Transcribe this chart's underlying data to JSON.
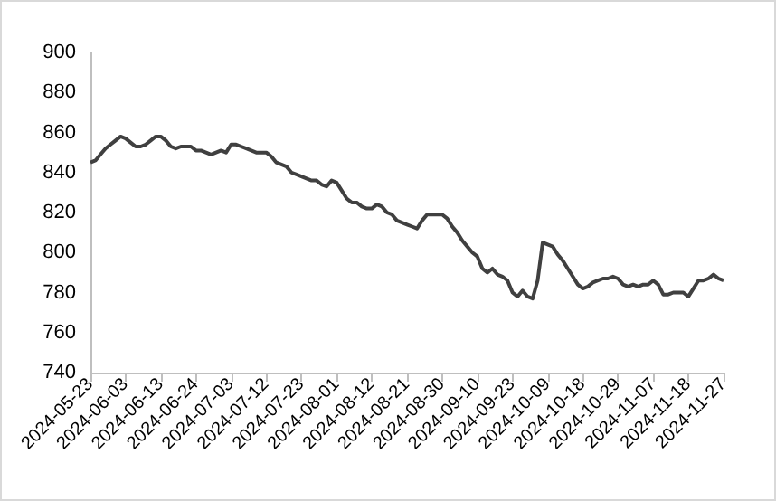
{
  "chart_data": {
    "type": "line",
    "categories": [
      "2024-05-23",
      null,
      null,
      null,
      null,
      null,
      null,
      "2024-06-03",
      null,
      null,
      null,
      null,
      null,
      null,
      "2024-06-13",
      null,
      null,
      null,
      null,
      null,
      null,
      "2024-06-24",
      null,
      null,
      null,
      null,
      null,
      null,
      "2024-07-03",
      null,
      null,
      null,
      null,
      null,
      null,
      "2024-07-12",
      null,
      null,
      null,
      null,
      null,
      null,
      "2024-07-23",
      null,
      null,
      null,
      null,
      null,
      null,
      "2024-08-01",
      null,
      null,
      null,
      null,
      null,
      null,
      "2024-08-12",
      null,
      null,
      null,
      null,
      null,
      null,
      "2024-08-21",
      null,
      null,
      null,
      null,
      null,
      null,
      "2024-08-30",
      null,
      null,
      null,
      null,
      null,
      null,
      "2024-09-10",
      null,
      null,
      null,
      null,
      null,
      null,
      "2024-09-23",
      null,
      null,
      null,
      null,
      null,
      null,
      "2024-10-09",
      null,
      null,
      null,
      null,
      null,
      null,
      "2024-10-18",
      null,
      null,
      null,
      null,
      null,
      null,
      "2024-10-29",
      null,
      null,
      null,
      null,
      null,
      null,
      "2024-11-07",
      null,
      null,
      null,
      null,
      null,
      null,
      "2024-11-18",
      null,
      null,
      null,
      null,
      null,
      null,
      "2024-11-27"
    ],
    "series": [
      {
        "color": "#404040",
        "values": [
          845,
          846,
          849,
          852,
          854,
          856,
          858,
          857,
          855,
          853,
          853,
          854,
          856,
          858,
          858,
          856,
          853,
          852,
          853,
          853,
          853,
          851,
          851,
          850,
          849,
          850,
          851,
          850,
          854,
          854,
          853,
          852,
          851,
          850,
          850,
          850,
          848,
          845,
          844,
          843,
          840,
          839,
          838,
          837,
          836,
          836,
          834,
          833,
          836,
          835,
          831,
          827,
          825,
          825,
          823,
          822,
          822,
          824,
          823,
          820,
          819,
          816,
          815,
          814,
          813,
          812,
          816,
          819,
          819,
          819,
          819,
          817,
          813,
          810,
          806,
          803,
          800,
          798,
          792,
          790,
          792,
          789,
          788,
          786,
          780,
          778,
          781,
          778,
          777,
          786,
          805,
          804,
          803,
          799,
          796,
          792,
          788,
          784,
          782,
          783,
          785,
          786,
          787,
          787,
          788,
          787,
          784,
          783,
          784,
          783,
          784,
          784,
          786,
          784,
          779,
          779,
          780,
          780,
          780,
          778,
          782,
          786,
          786,
          787,
          789,
          787,
          786
        ]
      }
    ],
    "ylim": [
      740,
      900
    ],
    "yticks": [
      740,
      760,
      780,
      800,
      820,
      840,
      860,
      880,
      900
    ],
    "grid": false,
    "marker": "none",
    "line_style": "solid"
  }
}
